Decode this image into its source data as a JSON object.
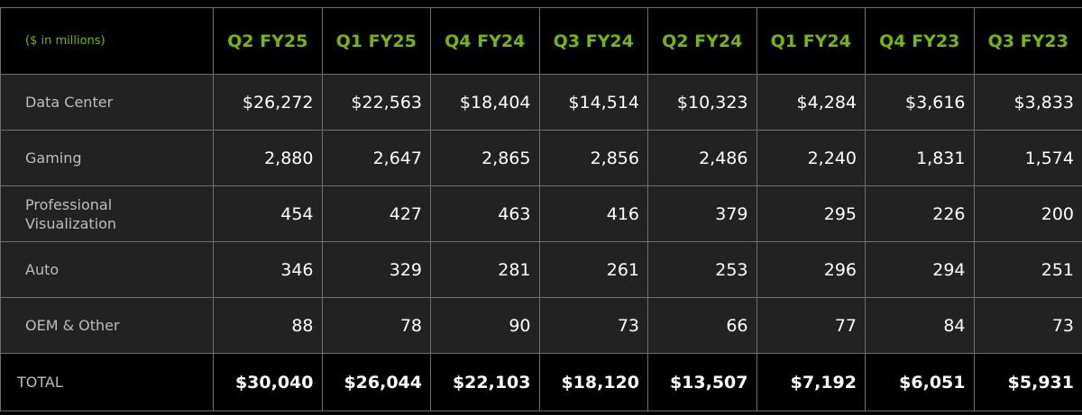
{
  "table": {
    "units_label": "($ in millions)",
    "columns": [
      "Q2 FY25",
      "Q1 FY25",
      "Q4 FY24",
      "Q3 FY24",
      "Q2 FY24",
      "Q1 FY24",
      "Q4 FY23",
      "Q3 FY23"
    ],
    "rows": [
      {
        "label": "Data Center",
        "values": [
          "$26,272",
          "$22,563",
          "$18,404",
          "$14,514",
          "$10,323",
          "$4,284",
          "$3,616",
          "$3,833"
        ]
      },
      {
        "label": "Gaming",
        "values": [
          "2,880",
          "2,647",
          "2,865",
          "2,856",
          "2,486",
          "2,240",
          "1,831",
          "1,574"
        ]
      },
      {
        "label_line1": "Professional",
        "label_line2": "Visualization",
        "values": [
          "454",
          "427",
          "463",
          "416",
          "379",
          "295",
          "226",
          "200"
        ]
      },
      {
        "label": "Auto",
        "values": [
          "346",
          "329",
          "281",
          "261",
          "253",
          "296",
          "294",
          "251"
        ]
      },
      {
        "label": "OEM & Other",
        "values": [
          "88",
          "78",
          "90",
          "73",
          "66",
          "77",
          "84",
          "73"
        ]
      }
    ],
    "total": {
      "label": "TOTAL",
      "values": [
        "$30,040",
        "$26,044",
        "$22,103",
        "$18,120",
        "$13,507",
        "$7,192",
        "$6,051",
        "$5,931"
      ]
    }
  }
}
